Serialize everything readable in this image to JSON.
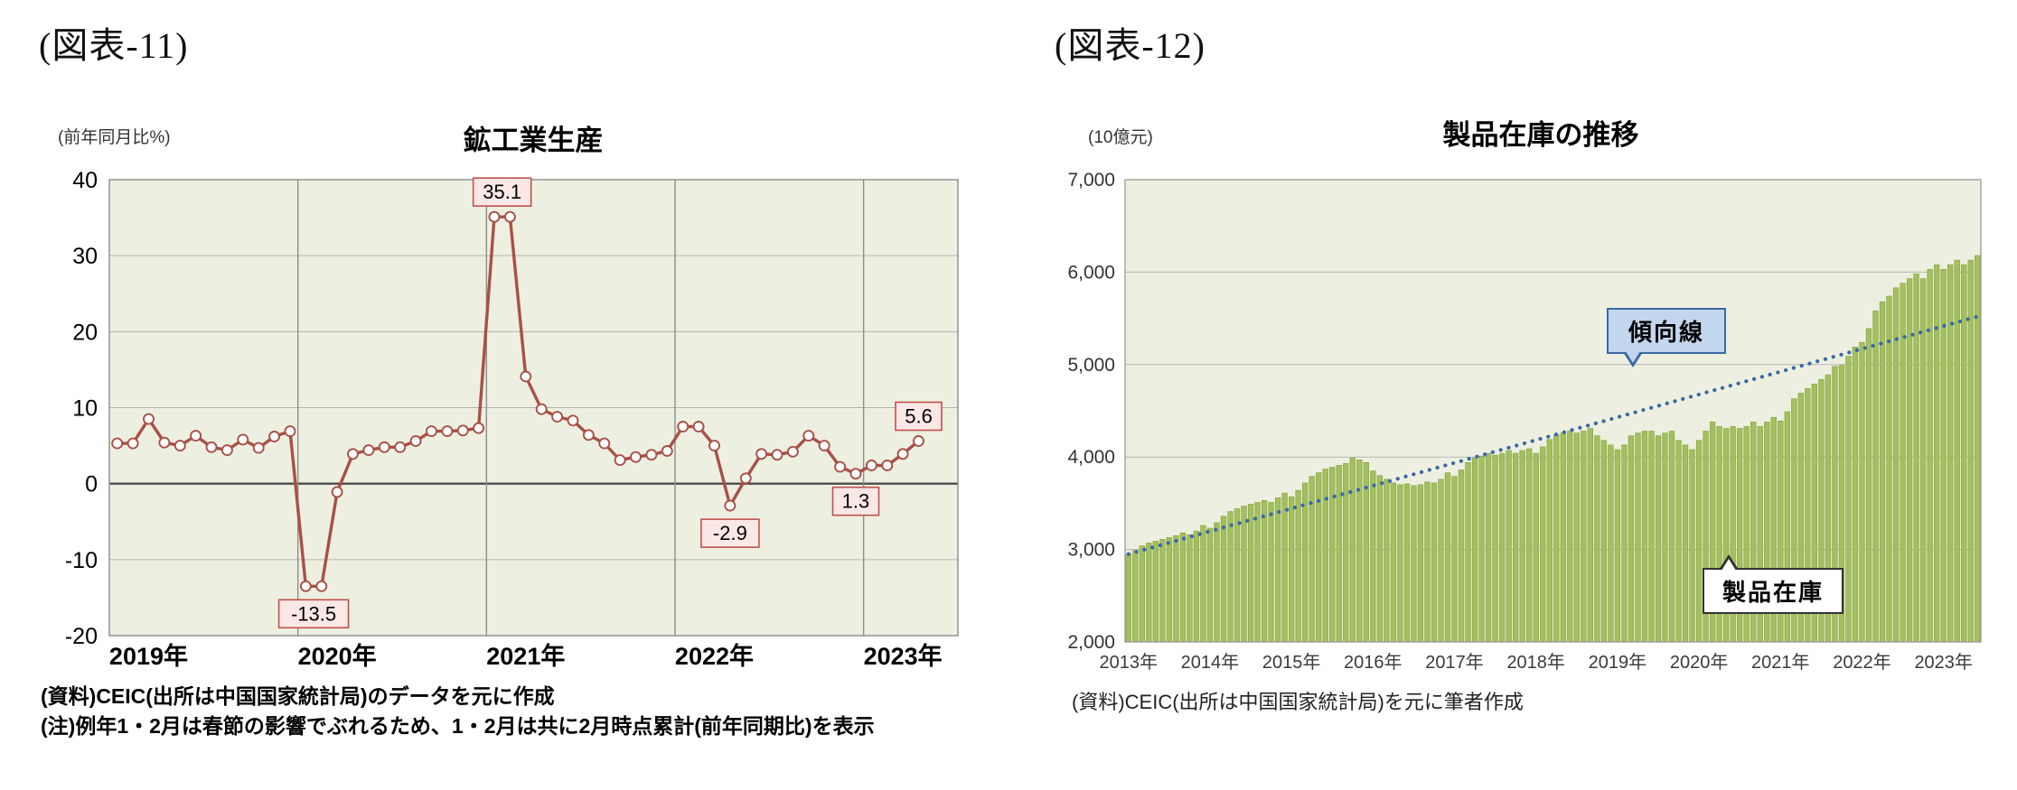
{
  "figures": {
    "left": {
      "label": "(図表-11)",
      "notes": [
        "(資料)CEIC(出所は中国国家統計局)のデータを元に作成",
        "(注)例年1・2月は春節の影響でぶれるため、1・2月は共に2月時点累計(前年同期比)を表示"
      ]
    },
    "right": {
      "label": "(図表-12)",
      "note": "(資料)CEIC(出所は中国国家統計局)を元に筆者作成",
      "callouts": {
        "trend": "傾向線",
        "inventory": "製品在庫"
      }
    }
  },
  "chart_data": [
    {
      "type": "line",
      "title": "鉱工業生産",
      "ylabel": "(前年同月比%)",
      "ylim": [
        -20,
        40
      ],
      "yticks": [
        40,
        30,
        20,
        10,
        0,
        -10,
        -20
      ],
      "x_start": "2019-01",
      "x_months_span": 54,
      "x_year_labels": [
        "2019年",
        "2020年",
        "2021年",
        "2022年",
        "2023年"
      ],
      "year_label_centers": [
        2,
        14,
        26,
        38,
        50
      ],
      "year_boundaries": [
        12,
        24,
        36,
        48
      ],
      "grid": true,
      "legend": "none",
      "series": [
        {
          "name": "鉱工業生産(前年同月比%)",
          "color": "#a85048",
          "values": [
            5.3,
            5.3,
            8.5,
            5.4,
            5.0,
            6.3,
            4.8,
            4.4,
            5.8,
            4.7,
            6.2,
            6.9,
            -13.5,
            -13.5,
            -1.1,
            3.9,
            4.4,
            4.8,
            4.8,
            5.6,
            6.9,
            6.9,
            7.0,
            7.3,
            35.1,
            35.1,
            14.1,
            9.8,
            8.8,
            8.3,
            6.4,
            5.3,
            3.1,
            3.5,
            3.8,
            4.3,
            7.5,
            7.5,
            5.0,
            -2.9,
            0.7,
            3.9,
            3.8,
            4.2,
            6.3,
            5.0,
            2.2,
            1.3,
            2.4,
            2.4,
            3.9,
            5.6
          ]
        }
      ],
      "annotations": [
        {
          "x_index": 12.5,
          "value": -13.5,
          "text": "-13.5",
          "position": "below"
        },
        {
          "x_index": 24.5,
          "value": 35.1,
          "text": "35.1",
          "position": "above"
        },
        {
          "x_index": 39,
          "value": -2.9,
          "text": "-2.9",
          "position": "below"
        },
        {
          "x_index": 47,
          "value": 1.3,
          "text": "1.3",
          "position": "below"
        },
        {
          "x_index": 51,
          "value": 5.6,
          "text": "5.6",
          "position": "above"
        }
      ],
      "colors": {
        "plot_bg": "#edf0e0",
        "grid": "#b3b3b3",
        "zero_line": "#4a4a4a",
        "year_line": "#8c8c8c",
        "border": "#8c8c8c",
        "label_bg": "#fbe7e6",
        "label_border": "#c0504d"
      }
    },
    {
      "type": "bar",
      "title": "製品在庫の推移",
      "ylabel": "(10億元)",
      "ylim": [
        2000,
        7000
      ],
      "yticks": [
        7000,
        6000,
        5000,
        4000,
        3000,
        2000
      ],
      "x_start": "2013-01",
      "x_year_labels": [
        "2013年",
        "2014年",
        "2015年",
        "2016年",
        "2017年",
        "2018年",
        "2019年",
        "2020年",
        "2021年",
        "2022年",
        "2023年"
      ],
      "grid": true,
      "legend": "none",
      "series_name": "製品在庫",
      "values": [
        2950,
        2990,
        3040,
        3070,
        3090,
        3110,
        3130,
        3150,
        3180,
        3160,
        3200,
        3260,
        3230,
        3290,
        3360,
        3410,
        3440,
        3470,
        3490,
        3510,
        3530,
        3510,
        3560,
        3610,
        3570,
        3640,
        3720,
        3790,
        3830,
        3870,
        3890,
        3910,
        3930,
        3990,
        3970,
        3940,
        3850,
        3800,
        3760,
        3720,
        3700,
        3710,
        3690,
        3700,
        3730,
        3720,
        3760,
        3830,
        3790,
        3860,
        3940,
        3990,
        4010,
        4040,
        4020,
        4040,
        4070,
        4040,
        4070,
        4090,
        4040,
        4110,
        4190,
        4240,
        4260,
        4280,
        4260,
        4280,
        4310,
        4230,
        4180,
        4130,
        4080,
        4130,
        4230,
        4260,
        4280,
        4280,
        4230,
        4260,
        4280,
        4180,
        4130,
        4080,
        4180,
        4280,
        4380,
        4330,
        4310,
        4330,
        4310,
        4330,
        4380,
        4330,
        4380,
        4430,
        4390,
        4490,
        4630,
        4690,
        4740,
        4790,
        4840,
        4890,
        4980,
        4990,
        5090,
        5190,
        5240,
        5390,
        5580,
        5680,
        5740,
        5830,
        5880,
        5930,
        5980,
        5930,
        6030,
        6080,
        6030,
        6080,
        6130,
        6080,
        6130,
        6180
      ],
      "trend_line": {
        "name": "傾向線",
        "start_value": 2950,
        "end_value": 5520
      },
      "colors": {
        "plot_bg": "#edf0e0",
        "grid": "#b5b5b5",
        "border": "#999999",
        "bar": "#a3bf5e",
        "bar_edge": "#85a13f",
        "trend": "#3a68a5"
      }
    }
  ]
}
